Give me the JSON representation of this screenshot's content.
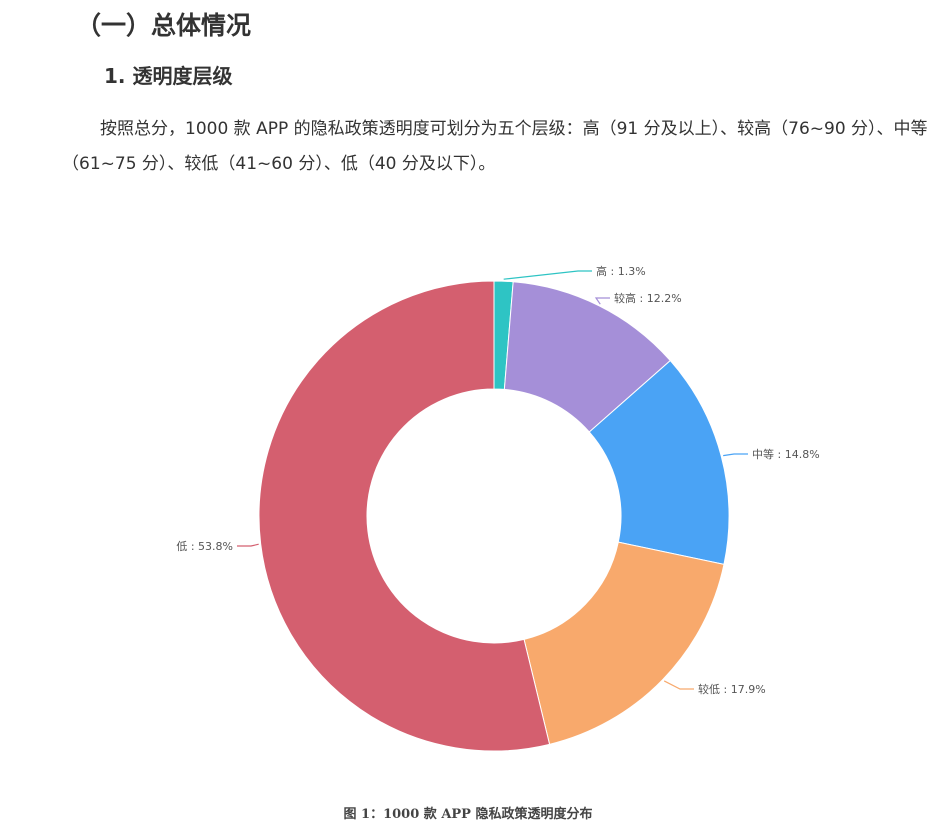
{
  "doc": {
    "section_title": "（一）总体情况",
    "subsection_title": "1.  透明度层级",
    "paragraph": "按照总分，1000 款 APP 的隐私政策透明度可划分为五个层级：高（91 分及以上）、较高（76~90 分）、中等（61~75 分）、较低（41~60 分）、低（40 分及以下）。",
    "figure_caption": "图 1：1000 款 APP 隐私政策透明度分布"
  },
  "chart_data": {
    "type": "pie",
    "donut": true,
    "title": "",
    "categories": [
      "高",
      "较高",
      "中等",
      "较低",
      "低"
    ],
    "values": [
      1.3,
      12.2,
      14.8,
      17.9,
      53.8
    ],
    "unit": "%",
    "labels": [
      "高 : 1.3%",
      "较高 : 12.2%",
      "中等 : 14.8%",
      "较低 : 17.9%",
      "低 : 53.8%"
    ],
    "colors": [
      "#2ec4c4",
      "#a58fd8",
      "#4aa3f5",
      "#f8a96c",
      "#d45f6f"
    ],
    "start": "top",
    "direction": "clockwise",
    "legend": "none"
  }
}
